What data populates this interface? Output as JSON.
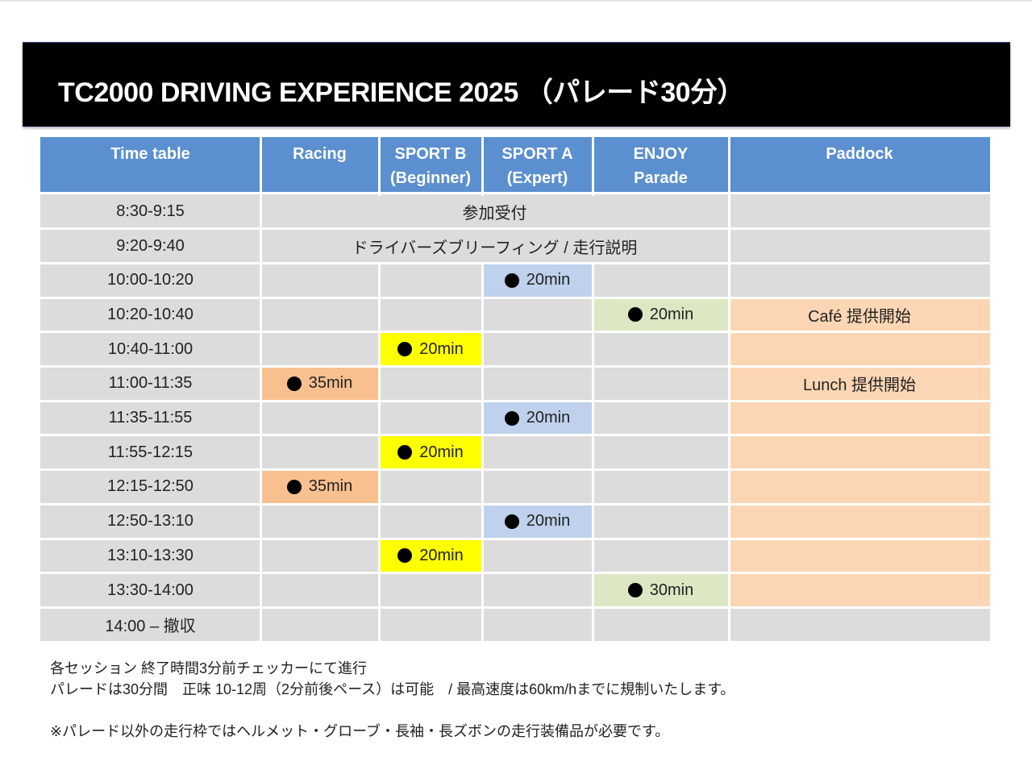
{
  "title": "TC2000 DRIVING EXPERIENCE 2025 （パレード30分）",
  "colors": {
    "header": "#5b8fd0",
    "row": "#dcdcdc",
    "racing": "#f9c08f",
    "sport_b": "#ffff00",
    "sport_a": "#bfd1ec",
    "enjoy": "#dbe8c3",
    "paddock": "#fcd6b4"
  },
  "headers": [
    {
      "line1": "Time table",
      "line2": ""
    },
    {
      "line1": "Racing",
      "line2": ""
    },
    {
      "line1": "SPORT B",
      "line2": "(Beginner)"
    },
    {
      "line1": "SPORT A",
      "line2": "(Expert)"
    },
    {
      "line1": "ENJOY",
      "line2": "Parade"
    },
    {
      "line1": "Paddock",
      "line2": ""
    }
  ],
  "span_rows": [
    {
      "time": "8:30-9:15",
      "label": "参加受付"
    },
    {
      "time": "9:20-9:40",
      "label": "ドライバーズブリーフィング / 走行説明"
    }
  ],
  "rows": [
    {
      "time": "10:00-10:20",
      "racing": "",
      "sport_b": "",
      "sport_a": "20min",
      "enjoy": "",
      "paddock": "",
      "paddock_active": false
    },
    {
      "time": "10:20-10:40",
      "racing": "",
      "sport_b": "",
      "sport_a": "",
      "enjoy": "20min",
      "paddock": "Café 提供開始",
      "paddock_active": true
    },
    {
      "time": "10:40-11:00",
      "racing": "",
      "sport_b": "20min",
      "sport_a": "",
      "enjoy": "",
      "paddock": "",
      "paddock_active": true
    },
    {
      "time": "11:00-11:35",
      "racing": "35min",
      "sport_b": "",
      "sport_a": "",
      "enjoy": "",
      "paddock": "Lunch 提供開始",
      "paddock_active": true
    },
    {
      "time": "11:35-11:55",
      "racing": "",
      "sport_b": "",
      "sport_a": "20min",
      "enjoy": "",
      "paddock": "",
      "paddock_active": true
    },
    {
      "time": "11:55-12:15",
      "racing": "",
      "sport_b": "20min",
      "sport_a": "",
      "enjoy": "",
      "paddock": "",
      "paddock_active": true
    },
    {
      "time": "12:15-12:50",
      "racing": "35min",
      "sport_b": "",
      "sport_a": "",
      "enjoy": "",
      "paddock": "",
      "paddock_active": true
    },
    {
      "time": "12:50-13:10",
      "racing": "",
      "sport_b": "",
      "sport_a": "20min",
      "enjoy": "",
      "paddock": "",
      "paddock_active": true
    },
    {
      "time": "13:10-13:30",
      "racing": "",
      "sport_b": "20min",
      "sport_a": "",
      "enjoy": "",
      "paddock": "",
      "paddock_active": true
    },
    {
      "time": "13:30-14:00",
      "racing": "",
      "sport_b": "",
      "sport_a": "",
      "enjoy": "30min",
      "paddock": "",
      "paddock_active": true
    },
    {
      "time": "14:00 – 撤収",
      "racing": "",
      "sport_b": "",
      "sport_a": "",
      "enjoy": "",
      "paddock": "",
      "paddock_active": false
    }
  ],
  "notes": [
    "各セッション 終了時間3分前チェッカーにて進行",
    "パレードは30分間　正味 10-12周（2分前後ペース）は可能　/ 最高速度は60km/hまでに規制いたします。",
    "",
    "※パレード以外の走行枠ではヘルメット・グローブ・長袖・長ズボンの走行装備品が必要です。"
  ]
}
